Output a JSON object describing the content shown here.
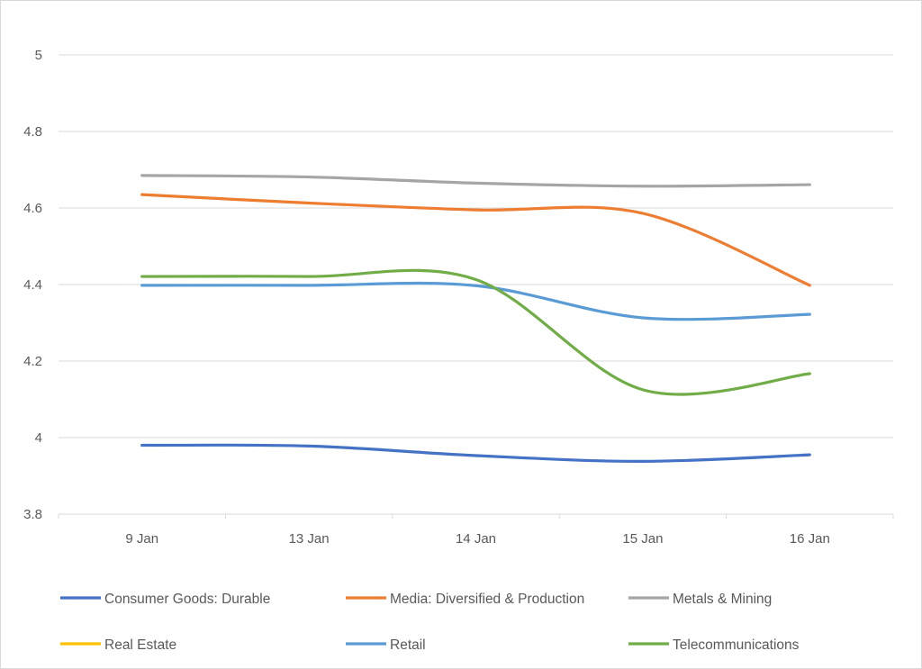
{
  "chart_data": {
    "type": "line",
    "title": "",
    "xlabel": "",
    "ylabel": "",
    "categories": [
      "9 Jan",
      "13 Jan",
      "14 Jan",
      "15 Jan",
      "16 Jan"
    ],
    "ylim": [
      3.8,
      5
    ],
    "yticks": [
      3.8,
      4,
      4.2,
      4.4,
      4.6,
      4.8,
      5
    ],
    "ytick_labels": [
      "3.8",
      "4",
      "4.2",
      "4.4",
      "4.6",
      "4.8",
      "5"
    ],
    "grid": true,
    "smooth": true,
    "legend_position": "bottom",
    "series": [
      {
        "name": "Consumer Goods: Durable",
        "color": "#4472C4",
        "values": [
          3.98,
          3.978,
          3.953,
          3.938,
          3.955
        ]
      },
      {
        "name": "Media: Diversified & Production",
        "color": "#ED7D31",
        "values": [
          4.635,
          4.613,
          4.595,
          4.586,
          4.398
        ]
      },
      {
        "name": "Metals & Mining",
        "color": "#A5A5A5",
        "values": [
          4.685,
          4.681,
          4.665,
          4.657,
          4.661
        ]
      },
      {
        "name": "Real Estate",
        "color": "#FFC000",
        "values": [
          null,
          null,
          null,
          null,
          null
        ]
      },
      {
        "name": "Retail",
        "color": "#5B9BD5",
        "values": [
          4.398,
          4.398,
          4.397,
          4.313,
          4.322
        ]
      },
      {
        "name": "Telecommunications",
        "color": "#70AD47",
        "values": [
          4.421,
          4.421,
          4.413,
          4.125,
          4.167
        ]
      }
    ]
  }
}
